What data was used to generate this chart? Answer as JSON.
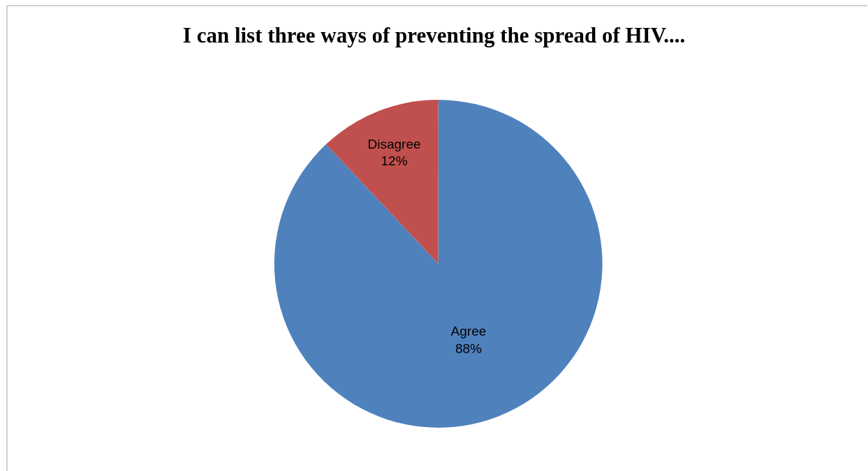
{
  "chart_data": {
    "type": "pie",
    "title": "I can list three ways of preventing the spread of HIV....",
    "categories": [
      "Agree",
      "Disagree"
    ],
    "values": [
      88,
      12
    ],
    "value_labels": [
      "88%",
      "12%"
    ],
    "colors": [
      "#4f81bd",
      "#c0504d"
    ],
    "legend": false
  }
}
